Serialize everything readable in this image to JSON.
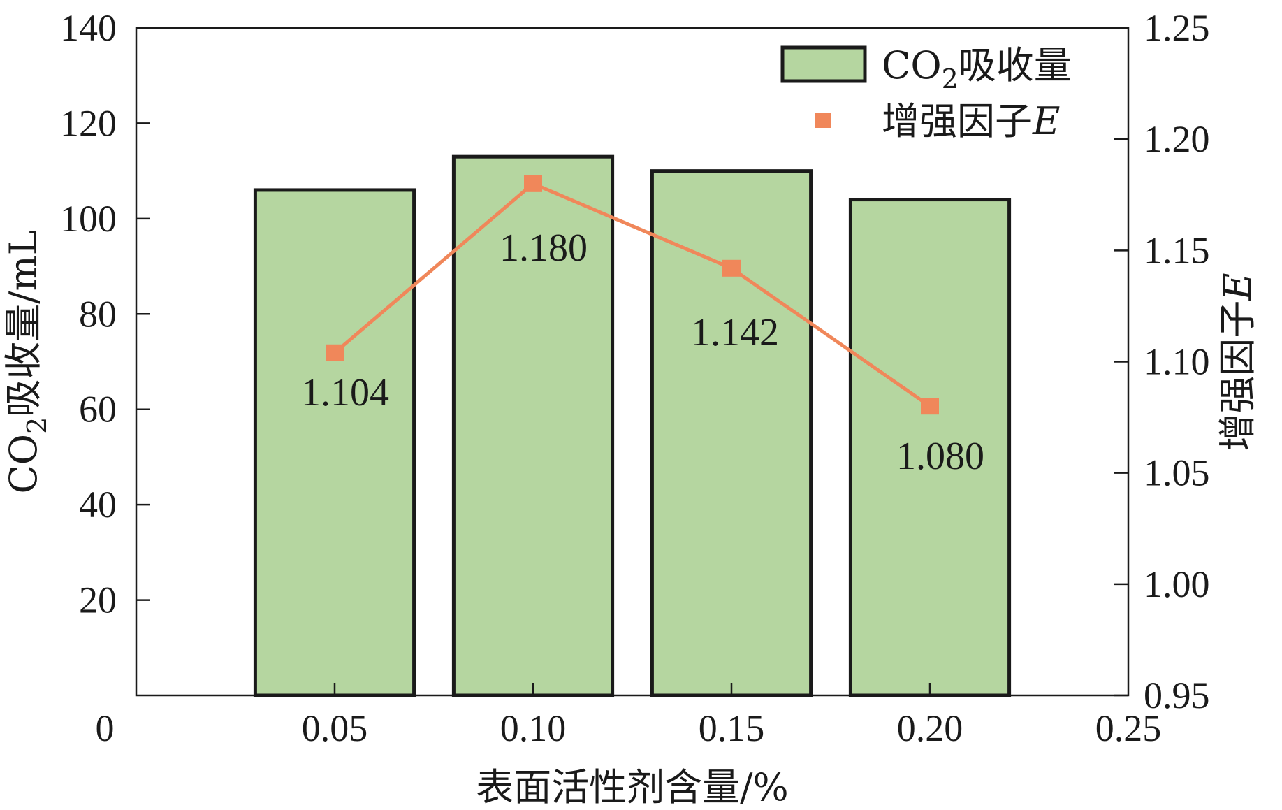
{
  "chart_data": {
    "type": "bar",
    "categories": [
      "0.05",
      "0.10",
      "0.15",
      "0.20"
    ],
    "x": [
      0.05,
      0.1,
      0.15,
      0.2
    ],
    "xlabel": "表面活性剂含量/%",
    "xlim": [
      0,
      0.25
    ],
    "xticks": [
      "0",
      "0.05",
      "0.10",
      "0.15",
      "0.20",
      "0.25"
    ],
    "ylabel_left_main": "CO",
    "ylabel_left_sub": "2",
    "ylabel_left_rest": "吸收量/mL",
    "ylim_left": [
      0,
      140
    ],
    "yticks_left": [
      "20",
      "40",
      "60",
      "80",
      "100",
      "120",
      "140"
    ],
    "ylabel_right_main": "增强因子",
    "ylabel_right_italic": "E",
    "ylim_right": [
      0.95,
      1.25
    ],
    "yticks_right": [
      "0.95",
      "1.00",
      "1.05",
      "1.10",
      "1.15",
      "1.20",
      "1.25"
    ],
    "series": [
      {
        "name_main": "CO",
        "name_sub": "2",
        "name_rest": "吸收量",
        "kind": "bar",
        "axis": "left",
        "values": [
          106,
          113,
          110,
          104
        ],
        "color": "#b5d6a0"
      },
      {
        "name_main": "增强因子",
        "name_italic": "E",
        "kind": "line",
        "axis": "right",
        "values": [
          1.104,
          1.18,
          1.142,
          1.08
        ],
        "labels": [
          "1.104",
          "1.180",
          "1.142",
          "1.080"
        ],
        "color": "#f0875a"
      }
    ],
    "legend": "top-right",
    "grid": false
  }
}
